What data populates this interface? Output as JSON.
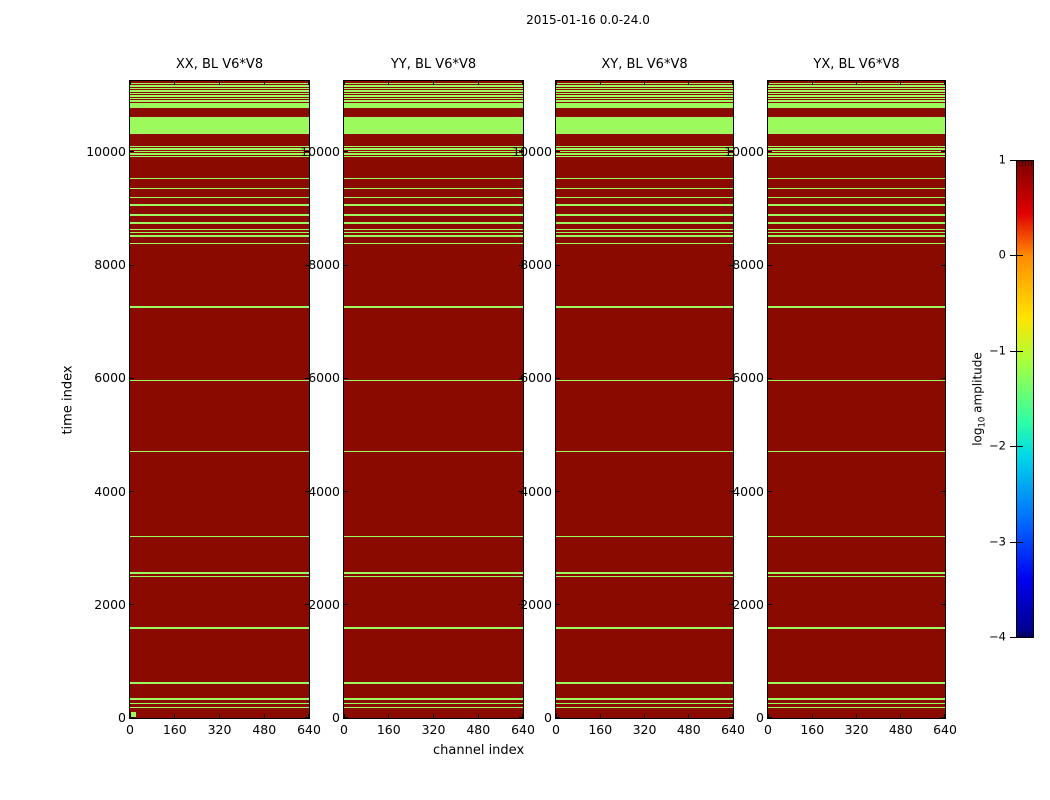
{
  "figure": {
    "suptitle": "2015-01-16 0.0-24.0",
    "xlabel": "channel index",
    "ylabel": "time index"
  },
  "colorbar": {
    "label_prefix": "log",
    "label_sub": "10",
    "label_suffix": " amplitude",
    "ticks": [
      "1",
      "0",
      "−1",
      "−2",
      "−3",
      "−4"
    ],
    "range_top": 1,
    "range_bottom": -4,
    "colormap": "jet",
    "gradient_top_to_bottom": [
      "#7f0000",
      "#e00000",
      "#ff8c00",
      "#ffe400",
      "#aaff3c",
      "#2cffa8",
      "#00d8e8",
      "#0068ff",
      "#0000f0",
      "#000082"
    ],
    "gradient_stops_pct": [
      0,
      11,
      20,
      33,
      42,
      55,
      62,
      76,
      88,
      100
    ]
  },
  "chart_data": {
    "type": "heatmap",
    "title": "2015-01-16 0.0-24.0",
    "xlabel": "channel index",
    "ylabel": "time index",
    "colorbar_label": "log10 amplitude",
    "panels": [
      {
        "title": "XX, BL V6*V8"
      },
      {
        "title": "YY, BL V6*V8"
      },
      {
        "title": "XY, BL V6*V8"
      },
      {
        "title": "YX, BL V6*V8"
      }
    ],
    "x_ticks": [
      0,
      160,
      320,
      480,
      640
    ],
    "y_ticks": [
      0,
      2000,
      4000,
      6000,
      8000,
      10000
    ],
    "xlim": [
      0,
      640
    ],
    "ylim": [
      0,
      11250
    ],
    "colorbar_range": [
      -4,
      1
    ],
    "background_color": "#8a0a00",
    "background_value_log10_amp": 1,
    "stripe_color": "#9dfa5c",
    "stripe_value_log10_amp": -1.5,
    "stripes_apply_to": "all_panels",
    "stripes_time_bands": [
      [
        11191,
        11219
      ],
      [
        11147,
        11175
      ],
      [
        11103,
        11131
      ],
      [
        11059,
        11087
      ],
      [
        11015,
        11043
      ],
      [
        10971,
        10999
      ],
      [
        10927,
        10955
      ],
      [
        10883,
        10911
      ],
      [
        10772,
        10860
      ],
      [
        10318,
        10610
      ],
      [
        10079,
        10107
      ],
      [
        10035,
        10063
      ],
      [
        9991,
        10019
      ],
      [
        9947,
        9975
      ],
      [
        9903,
        9931
      ],
      [
        9516,
        9544
      ],
      [
        9341,
        9369
      ],
      [
        9182,
        9210
      ],
      [
        9046,
        9074
      ],
      [
        8869,
        8897
      ],
      [
        8723,
        8751
      ],
      [
        8617,
        8645
      ],
      [
        8557,
        8585
      ],
      [
        8498,
        8526
      ],
      [
        8369,
        8397
      ],
      [
        7240,
        7268
      ],
      [
        5944,
        5972
      ],
      [
        4691,
        4719
      ],
      [
        3190,
        3218
      ],
      [
        2544,
        2572
      ],
      [
        2484,
        2512
      ],
      [
        1573,
        1601
      ],
      [
        602,
        630
      ],
      [
        325,
        353
      ],
      [
        245,
        273
      ],
      [
        175,
        203
      ]
    ],
    "panel1_green_marker": {
      "time_band": [
        25,
        105
      ],
      "channel_band": [
        4,
        20
      ]
    }
  }
}
